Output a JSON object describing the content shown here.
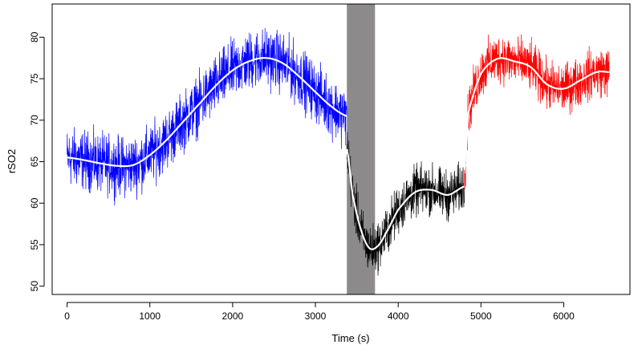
{
  "chart_data": {
    "type": "line",
    "title": "",
    "xlabel": "Time (s)",
    "ylabel": "rSO2",
    "xlim": [
      -180,
      6800
    ],
    "ylim": [
      49,
      84
    ],
    "x_ticks": [
      0,
      1000,
      2000,
      3000,
      4000,
      5000,
      6000
    ],
    "y_ticks": [
      50,
      55,
      60,
      65,
      70,
      75,
      80
    ],
    "x_tick_labels": [
      "0",
      "1000",
      "2000",
      "3000",
      "4000",
      "5000",
      "6000"
    ],
    "y_tick_labels": [
      "50",
      "55",
      "60",
      "65",
      "70",
      "75",
      "80"
    ],
    "grid": false,
    "legend": "none",
    "shaded_region": {
      "x_start": 3380,
      "x_end": 3720,
      "color": "#8c8a8b"
    },
    "series": [
      {
        "color": "#0000ff",
        "x": [
          0,
          200,
          400,
          600,
          800,
          1000,
          1200,
          1400,
          1600,
          1800,
          2000,
          2200,
          2400,
          2600,
          2800,
          3000,
          3200,
          3380
        ],
        "y": [
          65.5,
          65.2,
          64.8,
          64.5,
          64.6,
          65.8,
          67.6,
          69.8,
          72.0,
          74.2,
          76.0,
          77.1,
          77.5,
          76.9,
          75.3,
          73.4,
          71.6,
          70.5
        ],
        "noise": 2.6
      },
      {
        "color": "#000000",
        "x": [
          3380,
          3450,
          3550,
          3650,
          3750,
          3850,
          4000,
          4200,
          4400,
          4600,
          4800
        ],
        "y": [
          66.5,
          61.0,
          56.8,
          54.6,
          54.8,
          56.4,
          59.2,
          61.3,
          61.6,
          61.0,
          62.0
        ],
        "noise": 2.2
      },
      {
        "color": "#ff0000",
        "x": [
          4800,
          4850,
          5000,
          5200,
          5400,
          5600,
          5800,
          6000,
          6200,
          6400,
          6550
        ],
        "y": [
          64.0,
          71.0,
          75.6,
          77.4,
          77.1,
          76.4,
          74.3,
          73.8,
          74.8,
          75.8,
          75.8
        ],
        "noise": 2.2
      }
    ],
    "smooth_color": "#ffffff"
  }
}
